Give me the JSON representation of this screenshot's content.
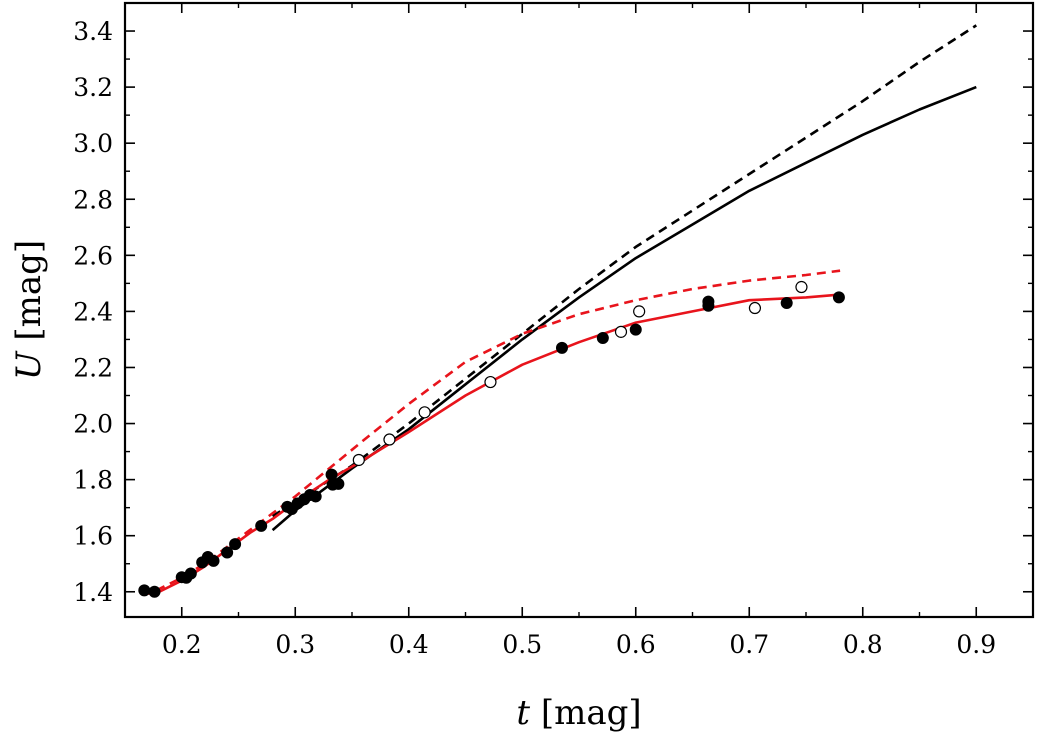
{
  "chart_data": {
    "type": "scatter",
    "title": "",
    "xlabel": {
      "var": "t",
      "unit": " [mag]"
    },
    "ylabel": {
      "var": "U",
      "unit": " [mag]"
    },
    "xlim": [
      0.15,
      0.95
    ],
    "ylim": [
      1.31,
      3.5
    ],
    "xticks": [
      0.2,
      0.3,
      0.4,
      0.5,
      0.6,
      0.7,
      0.8,
      0.9
    ],
    "yticks": [
      1.4,
      1.6,
      1.8,
      2.0,
      2.2,
      2.4,
      2.6,
      2.8,
      3.0,
      3.2,
      3.4
    ],
    "xtick_labels": [
      "0.2",
      "0.3",
      "0.4",
      "0.5",
      "0.6",
      "0.7",
      "0.8",
      "0.9"
    ],
    "ytick_labels": [
      "1.4",
      "1.6",
      "1.8",
      "2.0",
      "2.2",
      "2.4",
      "2.6",
      "2.8",
      "3.0",
      "3.2",
      "3.4"
    ],
    "grid": false,
    "legend": "none",
    "colors": {
      "black": "#000000",
      "red": "#e8141c"
    },
    "filled_points": [
      [
        0.167,
        1.405
      ],
      [
        0.176,
        1.4
      ],
      [
        0.2,
        1.452
      ],
      [
        0.204,
        1.45
      ],
      [
        0.208,
        1.465
      ],
      [
        0.218,
        1.505
      ],
      [
        0.223,
        1.524
      ],
      [
        0.228,
        1.51
      ],
      [
        0.24,
        1.54
      ],
      [
        0.247,
        1.57
      ],
      [
        0.27,
        1.635
      ],
      [
        0.293,
        1.703
      ],
      [
        0.297,
        1.695
      ],
      [
        0.302,
        1.715
      ],
      [
        0.308,
        1.73
      ],
      [
        0.313,
        1.745
      ],
      [
        0.318,
        1.74
      ],
      [
        0.332,
        1.818
      ],
      [
        0.333,
        1.782
      ],
      [
        0.338,
        1.785
      ],
      [
        0.535,
        2.27
      ],
      [
        0.571,
        2.305
      ],
      [
        0.6,
        2.335
      ],
      [
        0.664,
        2.435
      ],
      [
        0.664,
        2.42
      ],
      [
        0.733,
        2.43
      ],
      [
        0.779,
        2.45
      ]
    ],
    "open_points": [
      [
        0.356,
        1.87
      ],
      [
        0.383,
        1.943
      ],
      [
        0.414,
        2.04
      ],
      [
        0.472,
        2.148
      ],
      [
        0.587,
        2.327
      ],
      [
        0.603,
        2.4
      ],
      [
        0.705,
        2.412
      ],
      [
        0.746,
        2.487
      ]
    ],
    "series": [
      {
        "style": "solid",
        "color": "#000000",
        "x": [
          0.28,
          0.3,
          0.32,
          0.35,
          0.4,
          0.45,
          0.5,
          0.55,
          0.6,
          0.65,
          0.7,
          0.75,
          0.8,
          0.85,
          0.9
        ],
        "y": [
          1.62,
          1.69,
          1.75,
          1.84,
          1.98,
          2.14,
          2.3,
          2.45,
          2.59,
          2.71,
          2.83,
          2.93,
          3.03,
          3.12,
          3.2
        ]
      },
      {
        "style": "dashed",
        "color": "#000000",
        "x": [
          0.28,
          0.3,
          0.35,
          0.4,
          0.45,
          0.5,
          0.55,
          0.6,
          0.65,
          0.7,
          0.75,
          0.8,
          0.85,
          0.9
        ],
        "y": [
          1.67,
          1.72,
          1.85,
          2.0,
          2.16,
          2.32,
          2.48,
          2.63,
          2.76,
          2.89,
          3.02,
          3.15,
          3.29,
          3.42
        ]
      },
      {
        "style": "solid",
        "color": "#e8141c",
        "x": [
          0.165,
          0.18,
          0.2,
          0.22,
          0.24,
          0.26,
          0.28,
          0.3,
          0.33,
          0.36,
          0.4,
          0.45,
          0.5,
          0.55,
          0.6,
          0.65,
          0.7,
          0.75,
          0.78
        ],
        "y": [
          1.39,
          1.4,
          1.44,
          1.49,
          1.55,
          1.61,
          1.66,
          1.72,
          1.8,
          1.87,
          1.97,
          2.1,
          2.21,
          2.29,
          2.36,
          2.4,
          2.44,
          2.45,
          2.46
        ]
      },
      {
        "style": "dashed",
        "color": "#e8141c",
        "x": [
          0.165,
          0.18,
          0.2,
          0.22,
          0.24,
          0.26,
          0.28,
          0.3,
          0.33,
          0.36,
          0.4,
          0.45,
          0.5,
          0.55,
          0.6,
          0.65,
          0.7,
          0.75,
          0.78
        ],
        "y": [
          1.39,
          1.41,
          1.45,
          1.5,
          1.56,
          1.62,
          1.68,
          1.74,
          1.84,
          1.94,
          2.07,
          2.22,
          2.32,
          2.39,
          2.44,
          2.48,
          2.51,
          2.53,
          2.545
        ]
      }
    ]
  }
}
